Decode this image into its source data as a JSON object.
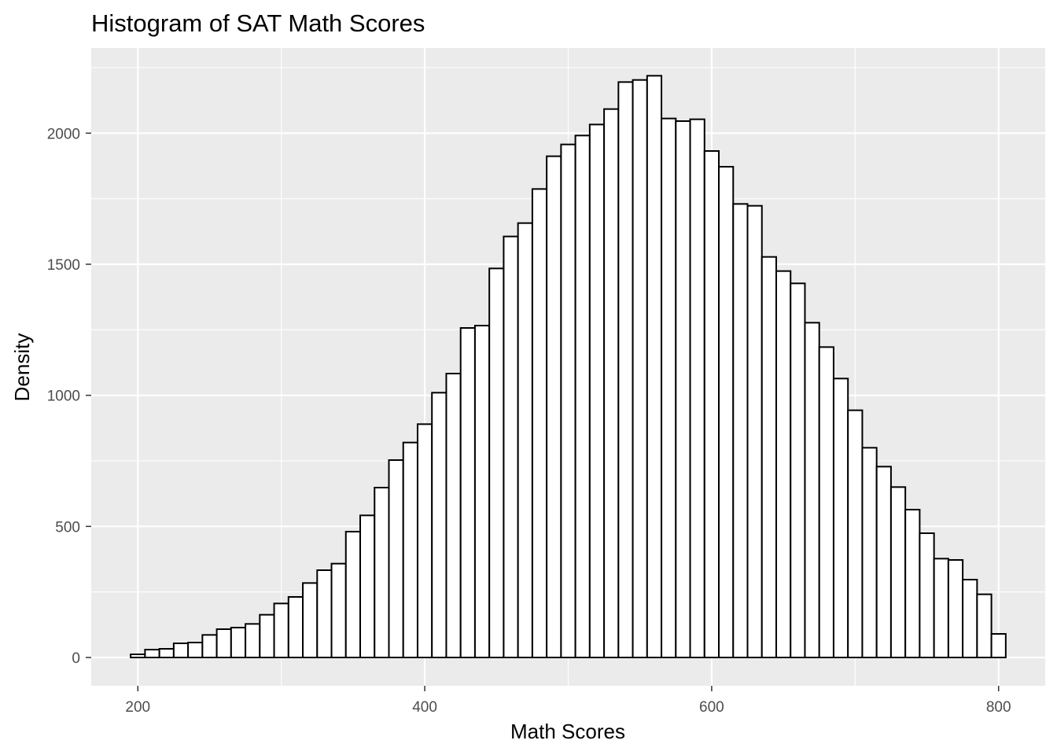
{
  "chart_data": {
    "type": "bar",
    "title": "Histogram of SAT Math Scores",
    "xlabel": "Math Scores",
    "ylabel": "Density",
    "xlim": [
      167.5,
      832.5
    ],
    "ylim": [
      -108,
      2325
    ],
    "x_ticks": [
      200,
      400,
      600,
      800
    ],
    "x_tick_labels": [
      "200",
      "400",
      "600",
      "800"
    ],
    "y_ticks": [
      0,
      500,
      1000,
      1500,
      2000
    ],
    "y_tick_labels": [
      "0",
      "500",
      "1000",
      "1500",
      "2000"
    ],
    "grid": true,
    "bin_width": 10,
    "bin_starts": [
      195,
      205,
      215,
      225,
      235,
      245,
      255,
      265,
      275,
      285,
      295,
      305,
      315,
      325,
      335,
      345,
      355,
      365,
      375,
      385,
      395,
      405,
      415,
      425,
      435,
      445,
      455,
      465,
      475,
      485,
      495,
      505,
      515,
      525,
      535,
      545,
      555,
      565,
      575,
      585,
      595,
      605,
      615,
      625,
      635,
      645,
      655,
      665,
      675,
      685,
      695,
      705,
      715,
      725,
      735,
      745,
      755,
      765,
      775,
      785,
      795
    ],
    "values": [
      12,
      30,
      33,
      54,
      57,
      86,
      108,
      114,
      128,
      163,
      206,
      231,
      284,
      333,
      358,
      480,
      542,
      648,
      753,
      820,
      890,
      1010,
      1083,
      1257,
      1266,
      1484,
      1606,
      1657,
      1787,
      1912,
      1957,
      1991,
      2033,
      2092,
      2195,
      2203,
      2219,
      2056,
      2046,
      2053,
      1932,
      1872,
      1730,
      1723,
      1528,
      1474,
      1427,
      1277,
      1184,
      1064,
      943,
      800,
      728,
      650,
      564,
      474,
      377,
      372,
      297,
      241,
      90
    ]
  }
}
